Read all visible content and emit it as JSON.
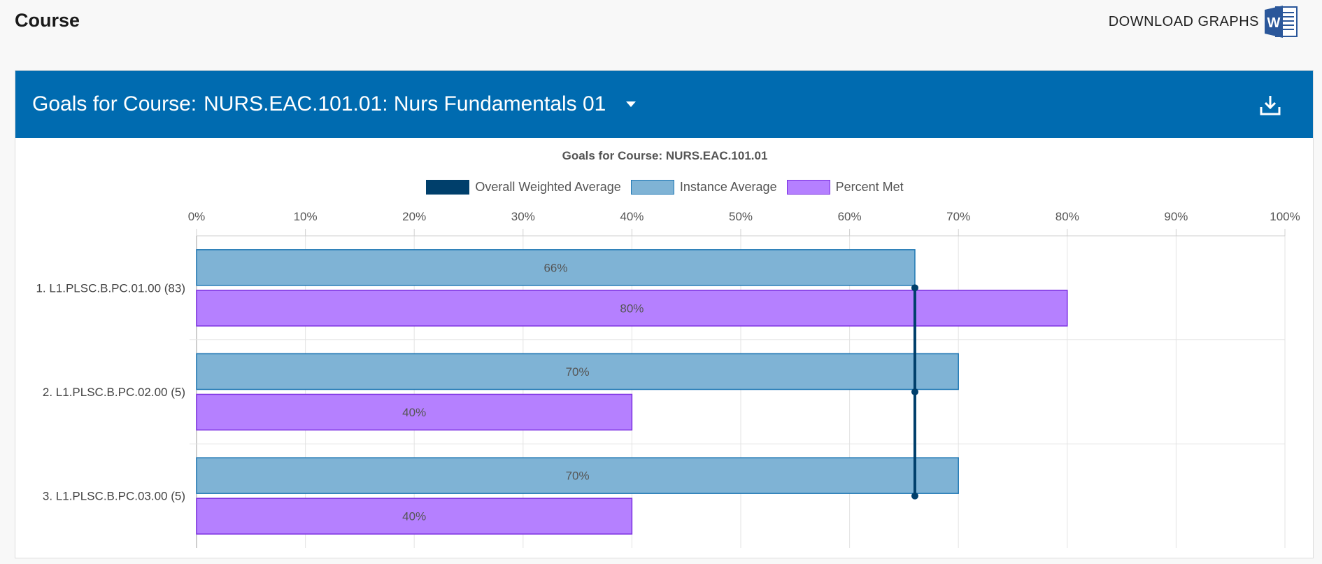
{
  "header": {
    "title": "Course",
    "download_label": "DOWNLOAD GRAPHS"
  },
  "panel": {
    "prefix": "Goals for Course:",
    "course": "NURS.EAC.101.01: Nurs Fundamentals 01"
  },
  "colors": {
    "header_bg": "#006bb0",
    "weighted_average": "#003f6b",
    "instance_fill": "#7fb3d5",
    "instance_border": "#1f77b4",
    "percent_met_fill": "#b580ff",
    "percent_met_border": "#7b2fe0"
  },
  "icons": {
    "download_graphs": "word-doc-icon",
    "dropdown": "caret-down-icon",
    "export": "download-tray-icon"
  },
  "chart_data": {
    "type": "bar",
    "orientation": "horizontal",
    "title": "Goals for Course: NURS.EAC.101.01",
    "legend": [
      "Overall Weighted Average",
      "Instance Average",
      "Percent Met"
    ],
    "legend_position": "top-center",
    "xlim": [
      0,
      100
    ],
    "x_ticks": [
      "0%",
      "10%",
      "20%",
      "30%",
      "40%",
      "50%",
      "60%",
      "70%",
      "80%",
      "90%",
      "100%"
    ],
    "grid": true,
    "categories": [
      "1. L1.PLSC.B.PC.01.00 (83)",
      "2. L1.PLSC.B.PC.02.00 (5)",
      "3. L1.PLSC.B.PC.03.00 (5)"
    ],
    "series": [
      {
        "name": "Instance Average",
        "values": [
          66,
          70,
          70
        ],
        "labels": [
          "66%",
          "70%",
          "70%"
        ]
      },
      {
        "name": "Percent Met",
        "values": [
          80,
          40,
          40
        ],
        "labels": [
          "80%",
          "40%",
          "40%"
        ]
      }
    ],
    "overall_weighted_average": 66
  }
}
